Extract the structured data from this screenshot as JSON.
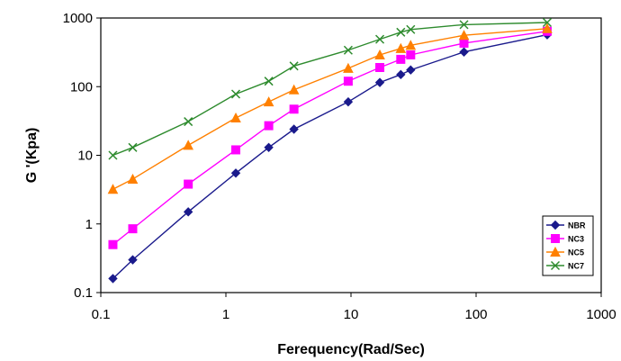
{
  "chart_data": {
    "type": "line",
    "xlabel": "Ferequency(Rad/Sec)",
    "ylabel": "G '(Kpa)",
    "x_scale": "log",
    "y_scale": "log",
    "xlim": [
      0.1,
      1000
    ],
    "ylim": [
      0.1,
      1000
    ],
    "x_ticks": [
      "0.1",
      "1",
      "10",
      "100",
      "1000"
    ],
    "y_ticks": [
      "0.1",
      "1",
      "10",
      "100",
      "1000"
    ],
    "grid": false,
    "legend_position": "bottom-right",
    "series": [
      {
        "name": "NBR",
        "color": "#1a1a8c",
        "marker": "diamond",
        "x": [
          0.125,
          0.18,
          0.5,
          1.2,
          2.2,
          3.5,
          9.5,
          17,
          25,
          30,
          80,
          370
        ],
        "y": [
          0.16,
          0.3,
          1.5,
          5.5,
          13,
          24,
          60,
          115,
          150,
          175,
          320,
          570
        ]
      },
      {
        "name": "NC3",
        "color": "#ff00ff",
        "marker": "square",
        "x": [
          0.125,
          0.18,
          0.5,
          1.2,
          2.2,
          3.5,
          9.5,
          17,
          25,
          30,
          80,
          370
        ],
        "y": [
          0.5,
          0.85,
          3.8,
          12,
          27,
          47,
          120,
          190,
          250,
          290,
          430,
          640
        ]
      },
      {
        "name": "NC5",
        "color": "#ff8000",
        "marker": "triangle",
        "x": [
          0.125,
          0.18,
          0.5,
          1.2,
          2.2,
          3.5,
          9.5,
          17,
          25,
          30,
          80,
          370
        ],
        "y": [
          3.2,
          4.5,
          14,
          35,
          60,
          90,
          185,
          290,
          360,
          400,
          560,
          700
        ]
      },
      {
        "name": "NC7",
        "color": "#2e8b2e",
        "marker": "x",
        "x": [
          0.125,
          0.18,
          0.5,
          1.2,
          2.2,
          3.5,
          9.5,
          17,
          25,
          30,
          80,
          370
        ],
        "y": [
          10,
          13,
          31,
          78,
          120,
          200,
          340,
          490,
          620,
          680,
          800,
          860
        ]
      }
    ]
  }
}
